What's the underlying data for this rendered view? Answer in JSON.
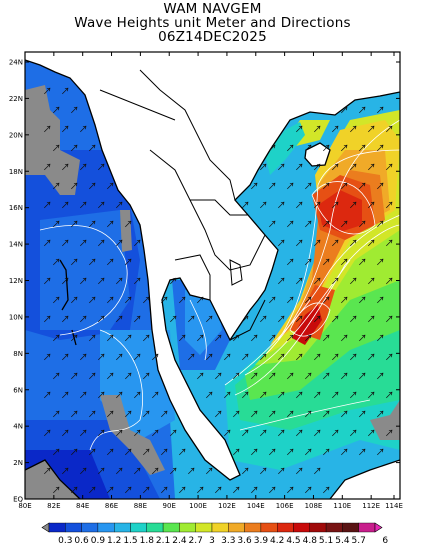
{
  "header": {
    "title": "WAM NAVGEM",
    "subtitle": "Wave Heights unit Meter and Directions",
    "datetime": "06Z14DEC2025"
  },
  "axes": {
    "x_ticks": [
      "80E",
      "82E",
      "84E",
      "86E",
      "88E",
      "90E",
      "100E",
      "102E",
      "104E",
      "106E",
      "108E",
      "110E",
      "112E",
      "114E"
    ],
    "y_ticks": [
      "EQ",
      "2N",
      "4N",
      "6N",
      "8N",
      "10N",
      "12N",
      "14N",
      "16N",
      "18N",
      "20N",
      "22N",
      "24N"
    ]
  },
  "colorbar": {
    "labels": [
      "0.3",
      "0.6",
      "0.9",
      "1.2",
      "1.5",
      "1.8",
      "2.1",
      "2.4",
      "2.7",
      "3",
      "3.3",
      "3.6",
      "3.9",
      "4.2",
      "4.5",
      "4.8",
      "5.1",
      "5.4",
      "5.7",
      "6"
    ],
    "colors": [
      "#8a8a8a",
      "#0a28c8",
      "#1450dc",
      "#1e6ee6",
      "#2896f0",
      "#28b4e6",
      "#1ed2c8",
      "#28dc96",
      "#5ae650",
      "#a0eb32",
      "#d2e628",
      "#f0d228",
      "#f0aa28",
      "#eb7d1e",
      "#e65014",
      "#dc280f",
      "#c80a0a",
      "#a00a0a",
      "#781414",
      "#5a1414",
      "#c81e8c",
      "#e628b4"
    ]
  },
  "legend_colors": {
    "land": "#ffffff",
    "coastline": "#000000",
    "shallow_ice": "#8a8a8a"
  }
}
